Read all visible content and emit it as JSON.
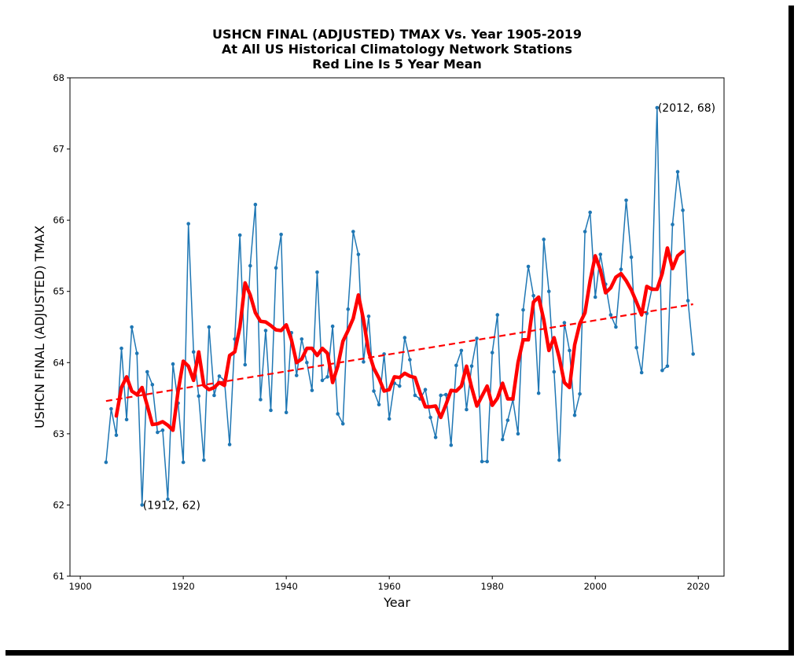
{
  "chart_data": {
    "type": "line",
    "title_lines": [
      "USHCN FINAL (ADJUSTED) TMAX Vs. Year 1905-2019",
      "At All US Historical Climatology Network Stations",
      "Red Line Is 5 Year Mean"
    ],
    "xlabel": "Year",
    "ylabel": "USHCN FINAL (ADJUSTED) TMAX",
    "xlim": [
      1898,
      2025
    ],
    "ylim": [
      61,
      68
    ],
    "xticks": [
      "1900",
      "1920",
      "1940",
      "1960",
      "1980",
      "2000",
      "2020"
    ],
    "yticks": [
      "61",
      "62",
      "63",
      "64",
      "65",
      "66",
      "67",
      "68"
    ],
    "grid": false,
    "colors": {
      "annual": "#1f77b4",
      "mean": "#ff0000",
      "trend": "#ff0000"
    },
    "series": [
      {
        "style": "line-markers",
        "x": [
          1905,
          1906,
          1907,
          1908,
          1909,
          1910,
          1911,
          1912,
          1913,
          1914,
          1915,
          1916,
          1917,
          1918,
          1919,
          1920,
          1921,
          1922,
          1923,
          1924,
          1925,
          1926,
          1927,
          1928,
          1929,
          1930,
          1931,
          1932,
          1933,
          1934,
          1935,
          1936,
          1937,
          1938,
          1939,
          1940,
          1941,
          1942,
          1943,
          1944,
          1945,
          1946,
          1947,
          1948,
          1949,
          1950,
          1951,
          1952,
          1953,
          1954,
          1955,
          1956,
          1957,
          1958,
          1959,
          1960,
          1961,
          1962,
          1963,
          1964,
          1965,
          1966,
          1967,
          1968,
          1969,
          1970,
          1971,
          1972,
          1973,
          1974,
          1975,
          1976,
          1977,
          1978,
          1979,
          1980,
          1981,
          1982,
          1983,
          1984,
          1985,
          1986,
          1987,
          1988,
          1989,
          1990,
          1991,
          1992,
          1993,
          1994,
          1995,
          1996,
          1997,
          1998,
          1999,
          2000,
          2001,
          2002,
          2003,
          2004,
          2005,
          2006,
          2007,
          2008,
          2009,
          2010,
          2011,
          2012,
          2013,
          2014,
          2015,
          2016,
          2017,
          2018,
          2019
        ],
        "values": [
          62.6,
          63.35,
          62.98,
          64.2,
          63.2,
          64.5,
          64.13,
          62.0,
          63.87,
          63.69,
          63.02,
          63.05,
          62.08,
          63.98,
          63.43,
          62.6,
          65.95,
          64.15,
          63.53,
          62.63,
          64.5,
          63.54,
          63.81,
          63.75,
          62.85,
          64.33,
          65.79,
          63.97,
          65.36,
          66.22,
          63.48,
          64.45,
          63.33,
          65.33,
          65.8,
          63.3,
          64.42,
          63.82,
          64.33,
          64.0,
          63.61,
          65.27,
          63.75,
          63.8,
          64.51,
          63.28,
          63.14,
          64.75,
          65.84,
          65.52,
          64.01,
          64.65,
          63.6,
          63.41,
          64.12,
          63.21,
          63.71,
          63.67,
          64.35,
          64.04,
          63.54,
          63.49,
          63.62,
          63.23,
          62.95,
          63.54,
          63.55,
          62.84,
          63.96,
          64.17,
          63.34,
          63.95,
          64.34,
          62.61,
          62.61,
          64.14,
          64.67,
          62.92,
          63.19,
          63.48,
          63.0,
          64.74,
          65.35,
          64.94,
          63.57,
          65.73,
          65.0,
          63.87,
          62.63,
          64.56,
          64.17,
          63.26,
          63.56,
          65.84,
          66.11,
          64.92,
          65.52,
          65.1,
          64.67,
          64.5,
          65.31,
          66.28,
          65.48,
          64.21,
          63.86,
          64.69,
          65.04,
          67.58,
          63.89,
          63.95,
          65.94,
          66.68,
          66.14,
          64.87,
          64.12
        ]
      },
      {
        "style": "thick-line",
        "x": [
          1907,
          1908,
          1909,
          1910,
          1911,
          1912,
          1913,
          1914,
          1915,
          1916,
          1917,
          1918,
          1919,
          1920,
          1921,
          1922,
          1923,
          1924,
          1925,
          1926,
          1927,
          1928,
          1929,
          1930,
          1931,
          1932,
          1933,
          1934,
          1935,
          1936,
          1937,
          1938,
          1939,
          1940,
          1941,
          1942,
          1943,
          1944,
          1945,
          1946,
          1947,
          1948,
          1949,
          1950,
          1951,
          1952,
          1953,
          1954,
          1955,
          1956,
          1957,
          1958,
          1959,
          1960,
          1961,
          1962,
          1963,
          1964,
          1965,
          1966,
          1967,
          1968,
          1969,
          1970,
          1971,
          1972,
          1973,
          1974,
          1975,
          1976,
          1977,
          1978,
          1979,
          1980,
          1981,
          1982,
          1983,
          1984,
          1985,
          1986,
          1987,
          1988,
          1989,
          1990,
          1991,
          1992,
          1993,
          1994,
          1995,
          1996,
          1997,
          1998,
          1999,
          2000,
          2001,
          2002,
          2003,
          2004,
          2005,
          2006,
          2007,
          2008,
          2009,
          2010,
          2011,
          2012,
          2013,
          2014,
          2015,
          2016,
          2017
        ],
        "values": [
          63.25,
          63.65,
          63.8,
          63.6,
          63.55,
          63.65,
          63.4,
          63.13,
          63.14,
          63.17,
          63.12,
          63.05,
          63.6,
          64.02,
          63.95,
          63.75,
          64.15,
          63.68,
          63.62,
          63.65,
          63.72,
          63.68,
          64.1,
          64.15,
          64.5,
          65.12,
          64.95,
          64.7,
          64.58,
          64.57,
          64.52,
          64.46,
          64.45,
          64.53,
          64.32,
          64.0,
          64.05,
          64.2,
          64.2,
          64.1,
          64.2,
          64.13,
          63.72,
          63.95,
          64.3,
          64.45,
          64.62,
          64.95,
          64.6,
          64.15,
          63.92,
          63.78,
          63.6,
          63.62,
          63.8,
          63.79,
          63.85,
          63.81,
          63.79,
          63.57,
          63.38,
          63.38,
          63.39,
          63.23,
          63.41,
          63.61,
          63.6,
          63.67,
          63.95,
          63.65,
          63.39,
          63.53,
          63.67,
          63.4,
          63.5,
          63.71,
          63.49,
          63.49,
          64.0,
          64.32,
          64.32,
          64.85,
          64.92,
          64.6,
          64.17,
          64.35,
          64.07,
          63.72,
          63.65,
          64.25,
          64.55,
          64.7,
          65.15,
          65.5,
          65.3,
          64.98,
          65.05,
          65.2,
          65.25,
          65.15,
          65.02,
          64.85,
          64.67,
          65.07,
          65.03,
          65.03,
          65.25,
          65.61,
          65.32,
          65.5,
          65.56
        ]
      },
      {
        "style": "dashed",
        "x": [
          1905,
          2019
        ],
        "values": [
          63.46,
          64.82
        ]
      }
    ],
    "annotations": [
      {
        "text": "(2012, 68)",
        "x": 2012,
        "y": 67.58
      },
      {
        "text": "(1912, 62)",
        "x": 1912,
        "y": 62.0
      }
    ]
  }
}
